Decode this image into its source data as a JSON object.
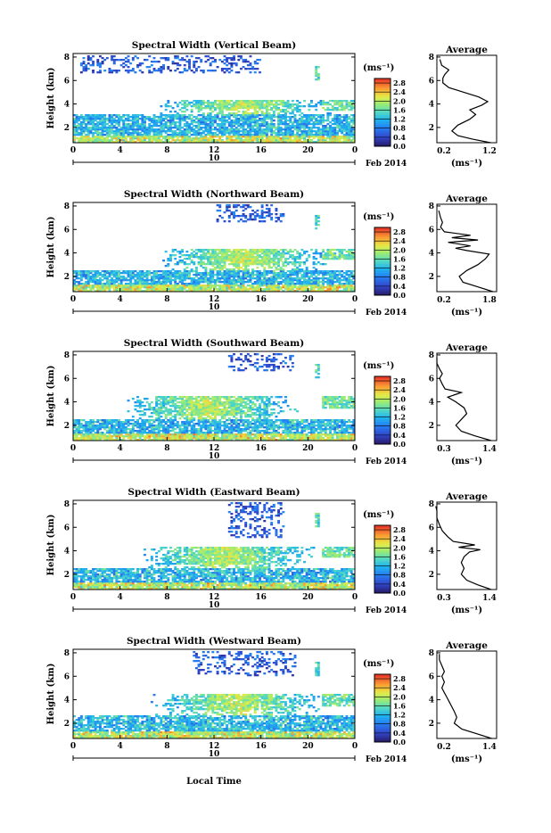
{
  "figure": {
    "footer_label": "Local Time"
  },
  "chart_data": [
    {
      "type": "heatmap",
      "title": "Spectral Width (Vertical Beam)",
      "ylabel": "Height (km)",
      "x_ticks": [
        "0",
        "4",
        "8",
        "12",
        "16",
        "20",
        "0"
      ],
      "y_ticks": [
        "2",
        "4",
        "6",
        "8"
      ],
      "xlim": [
        0,
        24
      ],
      "ylim": [
        0.7,
        8.3
      ],
      "day_label": "10",
      "month_label": "Feb 2014",
      "colorbar": {
        "unit": "(ms⁻¹)",
        "ticks": [
          "0.0",
          "0.4",
          "0.8",
          "1.2",
          "1.6",
          "2.0",
          "2.4",
          "2.8"
        ],
        "range": [
          0,
          3.0
        ]
      },
      "bands": {
        "low_top": 3.1,
        "mid_top": 4.3,
        "mid_center": 14.5,
        "upper_x": [
          0.5,
          16
        ],
        "upper_y": [
          6.5,
          8.1
        ]
      },
      "profile": {
        "title": "Average",
        "xlabel": "(ms⁻¹)",
        "x_ticks": [
          "0.2",
          "1.2"
        ],
        "xlim": [
          0.2,
          1.2
        ],
        "y_ticks": [
          "2",
          "4",
          "6",
          "8"
        ],
        "ylim": [
          0.7,
          8.3
        ],
        "points": [
          [
            1.1,
            0.7
          ],
          [
            0.8,
            1.0
          ],
          [
            0.55,
            1.3
          ],
          [
            0.45,
            1.7
          ],
          [
            0.55,
            2.2
          ],
          [
            0.75,
            2.7
          ],
          [
            0.85,
            3.1
          ],
          [
            0.75,
            3.5
          ],
          [
            0.95,
            3.9
          ],
          [
            1.05,
            4.2
          ],
          [
            0.9,
            4.6
          ],
          [
            0.65,
            5.0
          ],
          [
            0.4,
            5.4
          ],
          [
            0.3,
            5.8
          ],
          [
            0.3,
            6.2
          ],
          [
            0.33,
            6.5
          ],
          [
            0.4,
            6.9
          ],
          [
            0.28,
            7.3
          ],
          [
            0.25,
            7.8
          ]
        ]
      }
    },
    {
      "type": "heatmap",
      "title": "Spectral Width (Northward Beam)",
      "ylabel": "Height (km)",
      "x_ticks": [
        "0",
        "4",
        "8",
        "12",
        "16",
        "20",
        "0"
      ],
      "y_ticks": [
        "2",
        "4",
        "6",
        "8"
      ],
      "xlim": [
        0,
        24
      ],
      "ylim": [
        0.7,
        8.3
      ],
      "day_label": "10",
      "month_label": "Feb 2014",
      "colorbar": {
        "unit": "(ms⁻¹)",
        "ticks": [
          "0.0",
          "0.4",
          "0.8",
          "1.2",
          "1.6",
          "2.0",
          "2.4",
          "2.8"
        ],
        "range": [
          0,
          3.0
        ]
      },
      "bands": {
        "low_top": 2.5,
        "mid_top": 4.3,
        "mid_center": 14.5,
        "upper_x": [
          12,
          18
        ],
        "upper_y": [
          6.5,
          8.1
        ]
      },
      "profile": {
        "title": "Average",
        "xlabel": "(ms⁻¹)",
        "x_ticks": [
          "0.2",
          "1.8"
        ],
        "xlim": [
          0.2,
          1.8
        ],
        "y_ticks": [
          "2",
          "4",
          "6",
          "8"
        ],
        "ylim": [
          0.7,
          8.3
        ],
        "points": [
          [
            1.7,
            0.7
          ],
          [
            1.3,
            1.1
          ],
          [
            0.9,
            1.5
          ],
          [
            0.8,
            2.0
          ],
          [
            1.0,
            2.5
          ],
          [
            1.3,
            3.0
          ],
          [
            1.5,
            3.5
          ],
          [
            1.6,
            3.9
          ],
          [
            1.0,
            4.2
          ],
          [
            0.7,
            4.4
          ],
          [
            1.1,
            4.6
          ],
          [
            0.5,
            4.9
          ],
          [
            1.3,
            5.1
          ],
          [
            0.6,
            5.3
          ],
          [
            1.1,
            5.5
          ],
          [
            0.4,
            5.8
          ],
          [
            0.3,
            6.2
          ],
          [
            0.35,
            6.6
          ],
          [
            0.3,
            7.0
          ],
          [
            0.25,
            7.6
          ]
        ]
      }
    },
    {
      "type": "heatmap",
      "title": "Spectral Width (Southward Beam)",
      "ylabel": "Height (km)",
      "x_ticks": [
        "0",
        "4",
        "8",
        "12",
        "16",
        "20",
        "0"
      ],
      "y_ticks": [
        "2",
        "4",
        "6",
        "8"
      ],
      "xlim": [
        0,
        24
      ],
      "ylim": [
        0.7,
        8.3
      ],
      "day_label": "10",
      "month_label": "Feb 2014",
      "colorbar": {
        "unit": "(ms⁻¹)",
        "ticks": [
          "0.0",
          "0.4",
          "0.8",
          "1.2",
          "1.6",
          "2.0",
          "2.4",
          "2.8"
        ],
        "range": [
          0,
          3.0
        ]
      },
      "bands": {
        "low_top": 2.4,
        "mid_top": 4.4,
        "mid_center": 11.5,
        "upper_x": [
          13,
          19
        ],
        "upper_y": [
          6.6,
          8.1
        ]
      },
      "profile": {
        "title": "Average",
        "xlabel": "(ms⁻¹)",
        "x_ticks": [
          "0.3",
          "1.4"
        ],
        "xlim": [
          0.3,
          1.4
        ],
        "y_ticks": [
          "2",
          "4",
          "6",
          "8"
        ],
        "ylim": [
          0.7,
          8.3
        ],
        "points": [
          [
            1.3,
            0.7
          ],
          [
            1.0,
            1.1
          ],
          [
            0.75,
            1.5
          ],
          [
            0.65,
            2.0
          ],
          [
            0.75,
            2.5
          ],
          [
            0.85,
            3.0
          ],
          [
            0.8,
            3.5
          ],
          [
            0.65,
            4.0
          ],
          [
            0.5,
            4.4
          ],
          [
            0.75,
            4.8
          ],
          [
            0.45,
            5.1
          ],
          [
            0.4,
            5.5
          ],
          [
            0.35,
            6.0
          ],
          [
            0.4,
            6.4
          ],
          [
            0.35,
            6.8
          ],
          [
            0.3,
            7.3
          ],
          [
            0.3,
            7.8
          ]
        ]
      }
    },
    {
      "type": "heatmap",
      "title": "Spectral Width (Eastward Beam)",
      "ylabel": "Height (km)",
      "x_ticks": [
        "0",
        "4",
        "8",
        "12",
        "16",
        "20",
        "0"
      ],
      "y_ticks": [
        "2",
        "4",
        "6",
        "8"
      ],
      "xlim": [
        0,
        24
      ],
      "ylim": [
        0.7,
        8.3
      ],
      "day_label": "10",
      "month_label": "Feb 2014",
      "colorbar": {
        "unit": "(ms⁻¹)",
        "ticks": [
          "0.0",
          "0.4",
          "0.8",
          "1.2",
          "1.6",
          "2.0",
          "2.4",
          "2.8"
        ],
        "range": [
          0,
          3.0
        ]
      },
      "bands": {
        "low_top": 2.4,
        "mid_top": 4.3,
        "mid_center": 13.0,
        "upper_x": [
          13,
          18
        ],
        "upper_y": [
          5.0,
          8.1
        ]
      },
      "profile": {
        "title": "Average",
        "xlabel": "(ms⁻¹)",
        "x_ticks": [
          "0.3",
          "1.4"
        ],
        "xlim": [
          0.3,
          1.4
        ],
        "y_ticks": [
          "2",
          "4",
          "6",
          "8"
        ],
        "ylim": [
          0.7,
          8.3
        ],
        "points": [
          [
            1.3,
            0.7
          ],
          [
            1.05,
            1.1
          ],
          [
            0.85,
            1.5
          ],
          [
            0.75,
            2.0
          ],
          [
            0.8,
            2.5
          ],
          [
            0.75,
            3.0
          ],
          [
            0.8,
            3.5
          ],
          [
            0.9,
            3.9
          ],
          [
            1.1,
            4.1
          ],
          [
            0.7,
            4.3
          ],
          [
            1.0,
            4.5
          ],
          [
            0.6,
            4.8
          ],
          [
            0.5,
            5.2
          ],
          [
            0.4,
            5.7
          ],
          [
            0.35,
            6.2
          ],
          [
            0.3,
            6.8
          ],
          [
            0.3,
            7.4
          ],
          [
            0.28,
            7.8
          ]
        ]
      }
    },
    {
      "type": "heatmap",
      "title": "Spectral Width (Westward Beam)",
      "ylabel": "Height (km)",
      "x_ticks": [
        "0",
        "4",
        "8",
        "12",
        "16",
        "20",
        "0"
      ],
      "y_ticks": [
        "2",
        "4",
        "6",
        "8"
      ],
      "xlim": [
        0,
        24
      ],
      "ylim": [
        0.7,
        8.3
      ],
      "day_label": "10",
      "month_label": "Feb 2014",
      "colorbar": {
        "unit": "(ms⁻¹)",
        "ticks": [
          "0.0",
          "0.4",
          "0.8",
          "1.2",
          "1.6",
          "2.0",
          "2.4",
          "2.8"
        ],
        "range": [
          0,
          3.0
        ]
      },
      "bands": {
        "low_top": 2.6,
        "mid_top": 4.4,
        "mid_center": 14.0,
        "upper_x": [
          10,
          19
        ],
        "upper_y": [
          6.0,
          8.1
        ]
      },
      "profile": {
        "title": "Average",
        "xlabel": "(ms⁻¹)",
        "x_ticks": [
          "0.2",
          "1.4"
        ],
        "xlim": [
          0.2,
          1.4
        ],
        "y_ticks": [
          "2",
          "4",
          "6",
          "8"
        ],
        "ylim": [
          0.7,
          8.3
        ],
        "points": [
          [
            1.3,
            0.7
          ],
          [
            1.0,
            1.1
          ],
          [
            0.7,
            1.5
          ],
          [
            0.55,
            2.0
          ],
          [
            0.6,
            2.5
          ],
          [
            0.55,
            3.0
          ],
          [
            0.5,
            3.4
          ],
          [
            0.45,
            3.8
          ],
          [
            0.4,
            4.2
          ],
          [
            0.35,
            4.6
          ],
          [
            0.3,
            5.0
          ],
          [
            0.35,
            5.5
          ],
          [
            0.3,
            6.0
          ],
          [
            0.35,
            6.4
          ],
          [
            0.3,
            6.9
          ],
          [
            0.25,
            7.4
          ],
          [
            0.25,
            7.9
          ]
        ]
      }
    }
  ]
}
